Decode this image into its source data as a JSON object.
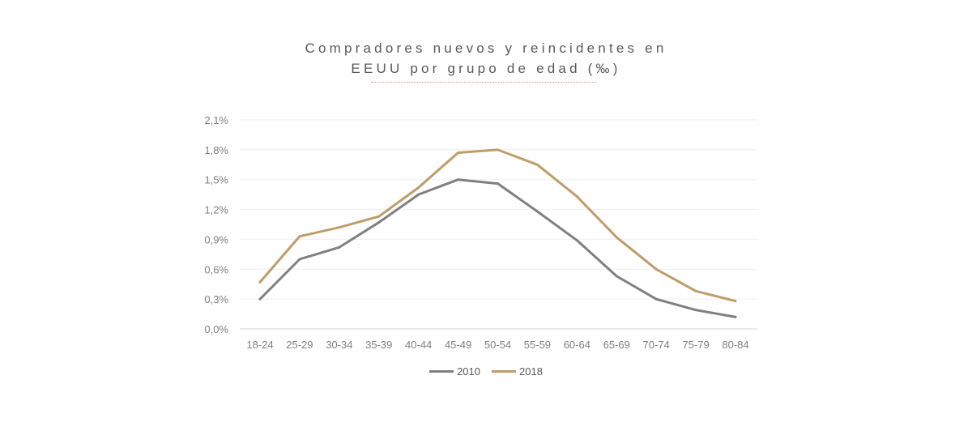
{
  "chart_data": {
    "type": "line",
    "title": [
      "Compradores nuevos y reincidentes en",
      "EEUU por grupo de edad (‰)"
    ],
    "xlabel": "",
    "ylabel": "",
    "categories": [
      "18-24",
      "25-29",
      "30-34",
      "35-39",
      "40-44",
      "45-49",
      "50-54",
      "55-59",
      "60-64",
      "65-69",
      "70-74",
      "75-79",
      "80-84"
    ],
    "ylim": [
      0,
      2.1
    ],
    "yticks": [
      0,
      0.3,
      0.6,
      0.9,
      1.2,
      1.5,
      1.8,
      2.1
    ],
    "ytick_labels": [
      "0,0%",
      "0,3%",
      "0,6%",
      "0,9%",
      "1,2%",
      "1,5%",
      "1,8%",
      "2,1%"
    ],
    "grid": true,
    "legend_position": "bottom",
    "series": [
      {
        "name": "2010",
        "color": "#808080",
        "values": [
          0.3,
          0.7,
          0.82,
          1.07,
          1.35,
          1.5,
          1.46,
          1.18,
          0.89,
          0.53,
          0.3,
          0.19,
          0.12
        ]
      },
      {
        "name": "2018",
        "color": "#bf9d69",
        "values": [
          0.47,
          0.93,
          1.02,
          1.13,
          1.42,
          1.77,
          1.8,
          1.65,
          1.33,
          0.92,
          0.6,
          0.38,
          0.28
        ]
      }
    ]
  }
}
